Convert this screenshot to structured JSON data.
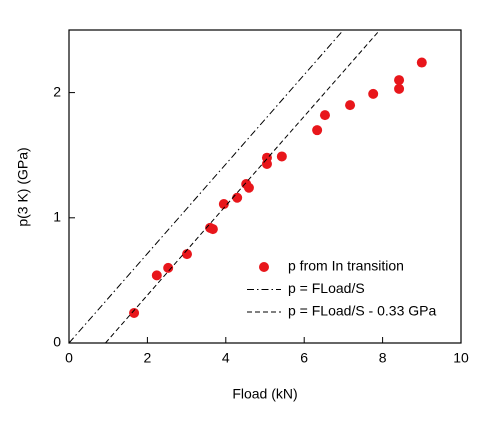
{
  "chart_data": {
    "type": "scatter",
    "xlabel": "Fload (kN)",
    "ylabel": "p(3 K) (GPa)",
    "xlim": [
      0,
      10
    ],
    "ylim": [
      0,
      2.5
    ],
    "xticks": [
      0,
      2,
      4,
      6,
      8,
      10
    ],
    "yticks": [
      0,
      1,
      2
    ],
    "series": [
      {
        "name": "p from In transition",
        "type": "scatter",
        "color": "#e8161b",
        "x": [
          1.66,
          2.24,
          2.53,
          3.01,
          3.6,
          3.67,
          3.95,
          4.29,
          4.52,
          4.59,
          5.05,
          5.05,
          5.43,
          6.33,
          6.53,
          7.17,
          7.76,
          8.42,
          8.42,
          9.0
        ],
        "values": [
          0.24,
          0.54,
          0.6,
          0.71,
          0.92,
          0.91,
          1.11,
          1.16,
          1.27,
          1.24,
          1.48,
          1.43,
          1.49,
          1.7,
          1.82,
          1.9,
          1.99,
          2.1,
          2.03,
          2.24
        ]
      },
      {
        "name": "p = FLoad/S",
        "type": "line",
        "dash": "dashdot",
        "color": "#000000",
        "x": [
          0,
          7.0
        ],
        "values": [
          0,
          2.5
        ]
      },
      {
        "name": "p = FLoad/S - 0.33 GPa",
        "type": "line",
        "dash": "dashed",
        "color": "#000000",
        "x": [
          0.93,
          7.93
        ],
        "values": [
          0,
          2.5
        ]
      }
    ]
  }
}
